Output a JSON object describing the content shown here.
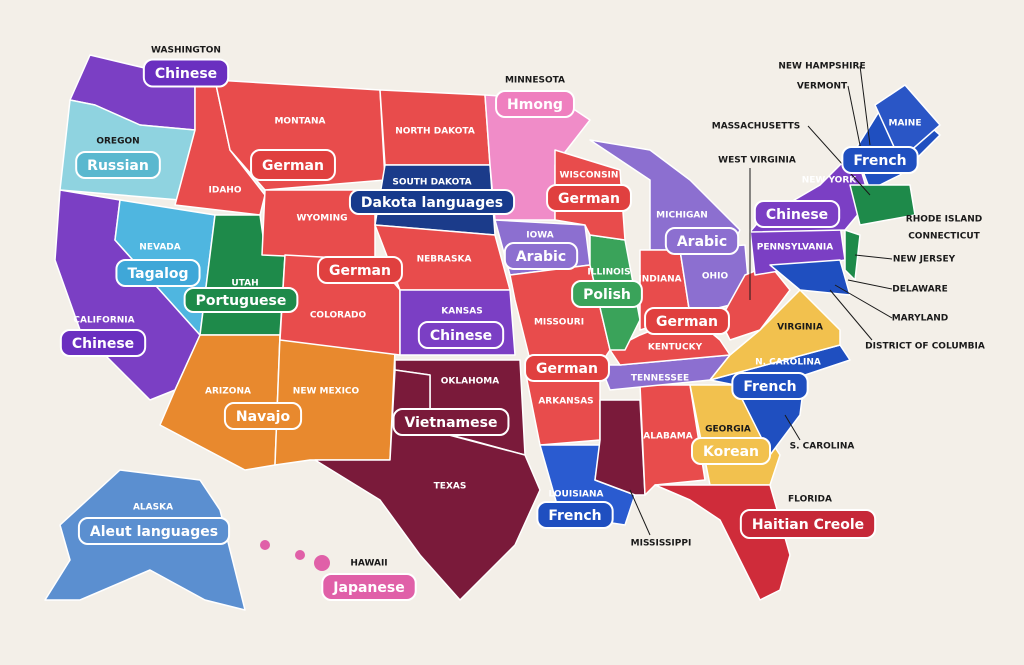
{
  "states": [
    {
      "name": "WASHINGTON",
      "language": "Chinese"
    },
    {
      "name": "OREGON",
      "language": "Russian"
    },
    {
      "name": "MONTANA",
      "language": "German"
    },
    {
      "name": "IDAHO"
    },
    {
      "name": "WYOMING",
      "language": "German"
    },
    {
      "name": "NORTH DAKOTA"
    },
    {
      "name": "SOUTH DAKOTA",
      "language": "Dakota languages"
    },
    {
      "name": "MINNESOTA",
      "language": "Hmong"
    },
    {
      "name": "WISCONSIN",
      "language": "German"
    },
    {
      "name": "MICHIGAN",
      "language": "Arabic"
    },
    {
      "name": "IOWA",
      "language": "Arabic"
    },
    {
      "name": "NEBRASKA"
    },
    {
      "name": "ILLINOIS",
      "language": "Polish"
    },
    {
      "name": "INDIANA",
      "language": "German"
    },
    {
      "name": "OHIO"
    },
    {
      "name": "KANSAS",
      "language": "Chinese"
    },
    {
      "name": "MISSOURI",
      "language": "German"
    },
    {
      "name": "KENTUCKY"
    },
    {
      "name": "TENNESSEE"
    },
    {
      "name": "WEST VIRGINIA"
    },
    {
      "name": "VIRGINIA"
    },
    {
      "name": "PENNSYLVANIA"
    },
    {
      "name": "NEW YORK",
      "language": "Chinese"
    },
    {
      "name": "NEW HAMPSHIRE"
    },
    {
      "name": "VERMONT"
    },
    {
      "name": "MASSACHUSETTS"
    },
    {
      "name": "MAINE",
      "language": "French"
    },
    {
      "name": "RHODE ISLAND"
    },
    {
      "name": "CONNECTICUT"
    },
    {
      "name": "NEW JERSEY"
    },
    {
      "name": "DELAWARE"
    },
    {
      "name": "MARYLAND"
    },
    {
      "name": "DISTRICT OF COLUMBIA"
    },
    {
      "name": "CALIFORNIA",
      "language": "Chinese"
    },
    {
      "name": "NEVADA",
      "language": "Tagalog"
    },
    {
      "name": "UTAH",
      "language": "Portuguese"
    },
    {
      "name": "COLORADO"
    },
    {
      "name": "ARIZONA",
      "language": "Navajo"
    },
    {
      "name": "NEW MEXICO"
    },
    {
      "name": "OKLAHOMA",
      "language": "Vietnamese"
    },
    {
      "name": "TEXAS"
    },
    {
      "name": "ARKANSAS"
    },
    {
      "name": "LOUISIANA",
      "language": "French"
    },
    {
      "name": "MISSISSIPPI"
    },
    {
      "name": "ALABAMA"
    },
    {
      "name": "GEORGIA",
      "language": "Korean"
    },
    {
      "name": "FLORIDA",
      "language": "Haitian Creole"
    },
    {
      "name": "N. CAROLINA",
      "language": "French"
    },
    {
      "name": "S. CAROLINA"
    },
    {
      "name": "ALASKA",
      "language": "Aleut languages"
    },
    {
      "name": "HAWAII",
      "language": "Japanese"
    }
  ]
}
